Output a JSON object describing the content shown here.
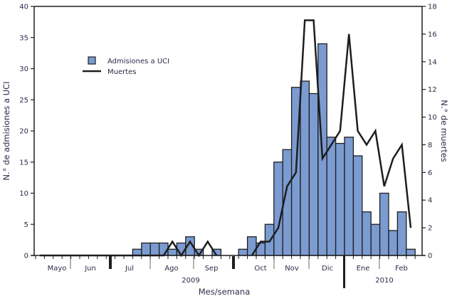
{
  "chart_data": {
    "type": "bar+line",
    "xlabel": "Mes/semana",
    "ylabel": "N.° de admisiones a UCI",
    "y2label": "N.° de muertes",
    "ylim": [
      0,
      40
    ],
    "y2lim": [
      0,
      18
    ],
    "yticks": [
      "0",
      "5",
      "10",
      "15",
      "20",
      "25",
      "30",
      "35",
      "40"
    ],
    "y2ticks": [
      "0",
      "2",
      "4",
      "6",
      "8",
      "10",
      "12",
      "14",
      "16",
      "18"
    ],
    "month_labels": [
      "Mayo",
      "Jun",
      "Jul",
      "Ago",
      "Sep",
      "Oct",
      "Nov",
      "Dic",
      "Ene",
      "Feb"
    ],
    "year_labels": [
      "2009",
      "2010"
    ],
    "legend": {
      "placement": "top-left",
      "bar": "Admisiones a UCI",
      "line": "Muertes"
    },
    "colors": {
      "bar": "#7b9bd1",
      "line": "#1e1e1e"
    },
    "grid": false,
    "series": [
      {
        "name": "Admisiones a UCI",
        "type": "bar",
        "axis": "left",
        "values": [
          0,
          0,
          0,
          0,
          0,
          0,
          0,
          0,
          0,
          0,
          0,
          1,
          2,
          2,
          2,
          1,
          2,
          3,
          1,
          0,
          1,
          0,
          0,
          1,
          3,
          2,
          5,
          15,
          17,
          27,
          28,
          26,
          34,
          19,
          18,
          19,
          16,
          7,
          5,
          10,
          4,
          7,
          1
        ]
      },
      {
        "name": "Muertes",
        "type": "line",
        "axis": "right",
        "values": [
          0,
          0,
          0,
          0,
          0,
          0,
          0,
          0,
          0,
          0,
          0,
          0,
          0,
          0,
          0,
          1,
          0,
          1,
          0,
          1,
          0,
          null,
          null,
          null,
          0,
          1,
          1,
          2,
          5,
          6,
          17,
          17,
          7,
          8,
          9,
          16,
          9,
          8,
          9,
          5,
          7,
          8,
          2
        ]
      }
    ]
  }
}
